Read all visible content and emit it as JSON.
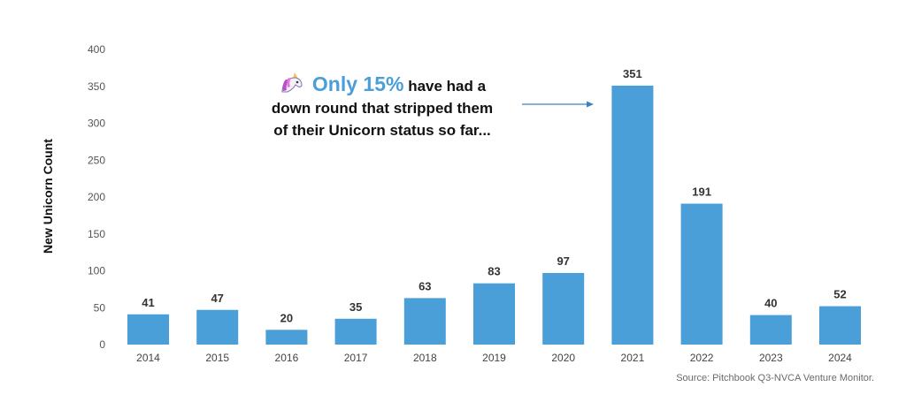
{
  "chart_data": {
    "type": "bar",
    "categories": [
      "2014",
      "2015",
      "2016",
      "2017",
      "2018",
      "2019",
      "2020",
      "2021",
      "2022",
      "2023",
      "2024"
    ],
    "values": [
      41,
      47,
      20,
      35,
      63,
      83,
      97,
      351,
      191,
      40,
      52
    ],
    "ylabel": "New Unicorn Count",
    "ylim": [
      0,
      400
    ],
    "yticks": [
      0,
      50,
      100,
      150,
      200,
      250,
      300,
      350,
      400
    ],
    "grid": false,
    "bar_color": "#4a9fd8"
  },
  "annotation": {
    "highlight": "Only 15%",
    "line1_rest": "have had a",
    "line2": "down round that stripped them",
    "line3": "of their Unicorn status so far...",
    "icon": "unicorn-icon",
    "highlight_color": "#4a9fd8"
  },
  "source": "Source: Pitchbook Q3-NVCA Venture Monitor."
}
